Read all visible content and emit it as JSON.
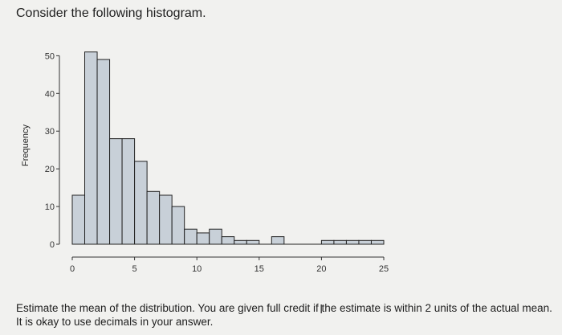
{
  "question": {
    "heading": "Consider the following histogram.",
    "instructions": "Estimate the mean of the distribution. You are given full credit if the estimate is within 2 units of the actual mean. It is okay to use decimals in your answer."
  },
  "colors": {
    "bar_fill": "#c8d0d8",
    "bar_stroke": "#222222",
    "background": "#f1f1ef"
  },
  "chart_data": {
    "type": "bar",
    "ylabel": "Frequency",
    "xlabel": "",
    "bin_width": 1,
    "bins_start": [
      0,
      1,
      2,
      3,
      4,
      5,
      6,
      7,
      8,
      9,
      10,
      11,
      12,
      13,
      14,
      15,
      16,
      17,
      18,
      19,
      20,
      21,
      22,
      23,
      24
    ],
    "values": [
      13,
      51,
      49,
      28,
      28,
      22,
      14,
      13,
      10,
      4,
      3,
      4,
      2,
      1,
      1,
      0,
      2,
      0,
      0,
      0,
      1,
      1,
      1,
      1,
      1
    ],
    "xlim": [
      -0.5,
      25
    ],
    "ylim": [
      0,
      52
    ],
    "x_ticks": [
      0,
      5,
      10,
      15,
      20,
      25
    ],
    "y_ticks": [
      0,
      10,
      20,
      30,
      40,
      50
    ]
  }
}
